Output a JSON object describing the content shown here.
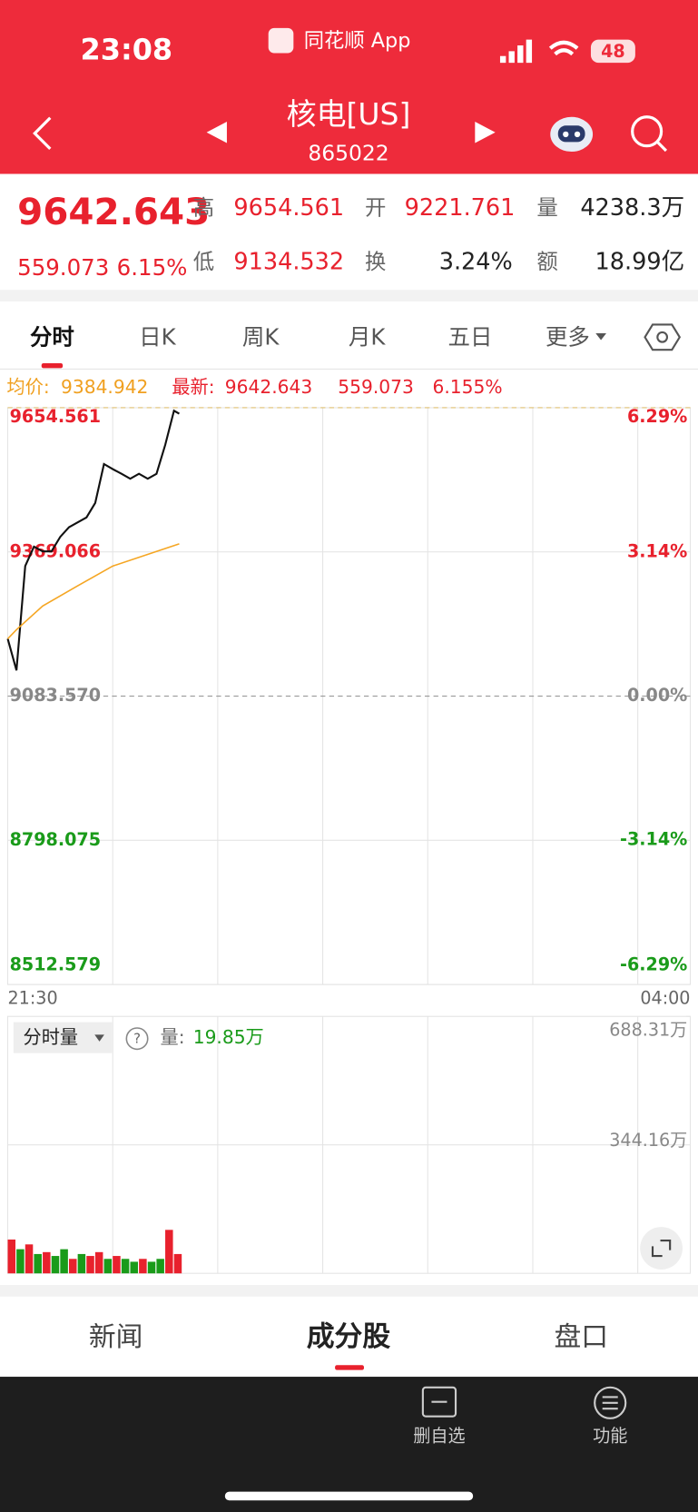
{
  "status_bar": {
    "time": "23:08",
    "app": "同花顺 App",
    "battery": "48"
  },
  "header": {
    "title": "核电[US]",
    "code": "865022"
  },
  "quote": {
    "price": "9642.643",
    "change": "559.073",
    "change_pct": "6.15%",
    "fields": [
      {
        "label": "高",
        "value": "9654.561"
      },
      {
        "label": "开",
        "value": "9221.761"
      },
      {
        "label": "量",
        "value": "4238.3万"
      },
      {
        "label": "低",
        "value": "9134.532"
      },
      {
        "label": "换",
        "value": "3.24%"
      },
      {
        "label": "额",
        "value": "18.99亿"
      }
    ]
  },
  "tabs": [
    "分时",
    "日K",
    "周K",
    "月K",
    "五日",
    "更多"
  ],
  "info": {
    "avg_label": "均价:",
    "avg": "9384.942",
    "latest_label": "最新:",
    "latest": "9642.643",
    "change": "559.073",
    "change_pct": "6.155%"
  },
  "chart_data": [
    {
      "type": "line",
      "x": [
        "21:30",
        "21:35",
        "21:40",
        "21:45",
        "21:50",
        "21:55",
        "22:00",
        "22:05",
        "22:10",
        "22:15",
        "22:20",
        "22:25",
        "22:30",
        "22:35",
        "22:40",
        "22:45",
        "22:50",
        "22:55",
        "23:00",
        "23:05",
        "23:08"
      ],
      "xlim": [
        "21:30",
        "04:00"
      ],
      "series": [
        {
          "color": "#111111",
          "values": [
            9197.0,
            9134.5,
            9341.1,
            9379.5,
            9370.0,
            9370.0,
            9398.8,
            9418.0,
            9427.6,
            9437.2,
            9466.0,
            9543.0,
            9533.0,
            9523.7,
            9514.0,
            9523.7,
            9514.0,
            9523.7,
            9581.0,
            9648.6,
            9642.643
          ]
        },
        {
          "color": "#f5a623",
          "x": [
            "21:30",
            "21:35",
            "21:50",
            "22:10",
            "22:30",
            "22:55",
            "23:08"
          ],
          "values": [
            9197.0,
            9215.0,
            9262.0,
            9302.0,
            9341.0,
            9370.0,
            9384.942
          ]
        }
      ],
      "ylim": [
        8512.579,
        9654.561
      ],
      "yticks": [
        9654.561,
        9369.066,
        {
          "value": 9083.57,
          "label": "9083.570"
        },
        8798.075,
        8512.579
      ],
      "y2lim": [
        -6.29,
        6.29
      ],
      "y2ticks": [
        {
          "value": 6.29,
          "label": "6.29%"
        },
        {
          "value": 3.14,
          "label": "3.14%"
        },
        {
          "value": 0,
          "label": "0.00%"
        },
        {
          "value": -3.14,
          "label": "-3.14%"
        },
        {
          "value": -6.29,
          "label": "-6.29%"
        }
      ],
      "grid": true
    },
    {
      "type": "bar",
      "x": [
        "21:30",
        "21:35",
        "21:40",
        "21:45",
        "21:50",
        "21:55",
        "22:00",
        "22:05",
        "22:10",
        "22:15",
        "22:20",
        "22:25",
        "22:30",
        "22:35",
        "22:40",
        "22:45",
        "22:50",
        "22:55",
        "23:00",
        "23:05"
      ],
      "values": [
        90.6,
        64.7,
        77.6,
        51.8,
        56.9,
        46.6,
        64.7,
        38.8,
        51.8,
        46.6,
        56.9,
        38.8,
        46.6,
        38.8,
        31.1,
        38.8,
        31.1,
        38.8,
        116.5,
        51.8
      ],
      "colors": [
        "#e8212d",
        "#1a9b1a",
        "#e8212d",
        "#1a9b1a",
        "#e8212d",
        "#1a9b1a",
        "#1a9b1a",
        "#e8212d",
        "#1a9b1a",
        "#e8212d",
        "#e8212d",
        "#1a9b1a",
        "#e8212d",
        "#1a9b1a",
        "#1a9b1a",
        "#e8212d",
        "#1a9b1a",
        "#1a9b1a",
        "#e8212d",
        "#e8212d"
      ],
      "ylim": [
        0,
        688.31
      ],
      "yticks": [
        {
          "value": 688.31,
          "label": "688.31万"
        },
        {
          "value": 344.16,
          "label": "344.16万"
        }
      ]
    }
  ],
  "volume_panel": {
    "dropdown": "分时量",
    "help": "?",
    "label": "量:",
    "value": "19.85万"
  },
  "bottom_tabs": [
    "新闻",
    "成分股",
    "盘口"
  ],
  "toolbar": [
    {
      "label": "删自选"
    },
    {
      "label": "功能"
    }
  ]
}
